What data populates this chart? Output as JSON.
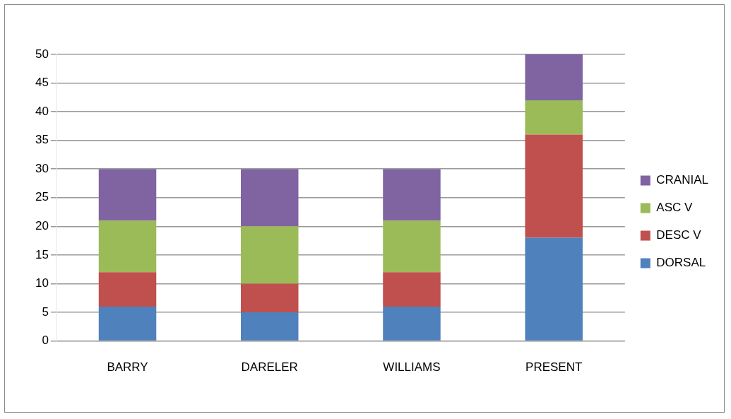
{
  "chart_data": {
    "type": "bar",
    "stacked": true,
    "categories": [
      "BARRY",
      "DARELER",
      "WILLIAMS",
      "PRESENT"
    ],
    "series": [
      {
        "name": "DORSAL",
        "color": "#4f81bd",
        "values": [
          6,
          5,
          6,
          18
        ]
      },
      {
        "name": "DESC V",
        "color": "#c0504d",
        "values": [
          6,
          5,
          6,
          18
        ]
      },
      {
        "name": "ASC V",
        "color": "#9bbb59",
        "values": [
          9,
          10,
          9,
          6
        ]
      },
      {
        "name": "CRANIAL",
        "color": "#8064a2",
        "values": [
          9,
          10,
          9,
          8
        ]
      }
    ],
    "ylim": [
      0,
      50
    ],
    "yticks": [
      0,
      5,
      10,
      15,
      20,
      25,
      30,
      35,
      40,
      45,
      50
    ],
    "grid": "y",
    "legend": "right"
  }
}
